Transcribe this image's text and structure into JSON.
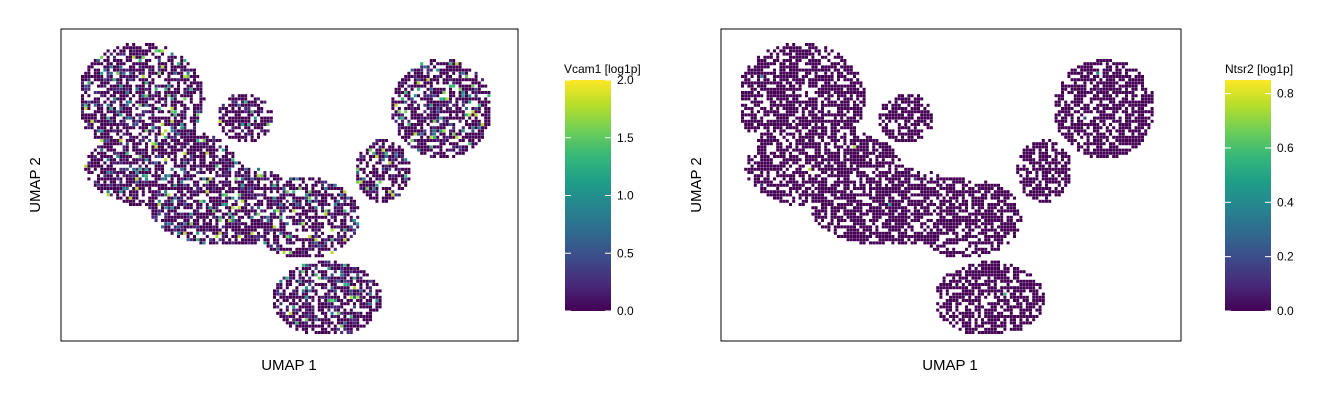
{
  "chart_data": [
    {
      "type": "hexbin",
      "xlabel": "UMAP 1",
      "ylabel": "UMAP 2",
      "colorbar": {
        "label": "Vcam1 [log1p]",
        "min": 0.0,
        "max": 2.0,
        "ticks": [
          "0.0",
          "0.5",
          "1.0",
          "1.5",
          "2.0"
        ]
      },
      "colormap": "viridis",
      "x_ticks_shown": false,
      "y_ticks_shown": false
    },
    {
      "type": "hexbin",
      "xlabel": "UMAP 1",
      "ylabel": "UMAP 2",
      "colorbar": {
        "label": "Ntsr2 [log1p]",
        "min": 0.0,
        "max": 0.85,
        "ticks": [
          "0.0",
          "0.2",
          "0.4",
          "0.6",
          "0.8"
        ]
      },
      "colormap": "viridis",
      "x_ticks_shown": false,
      "y_ticks_shown": false
    }
  ],
  "colors": {
    "viridis": [
      "#440154",
      "#482878",
      "#3e4989",
      "#31688e",
      "#26828e",
      "#1f9e89",
      "#35b779",
      "#6ece58",
      "#b5de2b",
      "#fde725"
    ],
    "frame": "#000000"
  }
}
